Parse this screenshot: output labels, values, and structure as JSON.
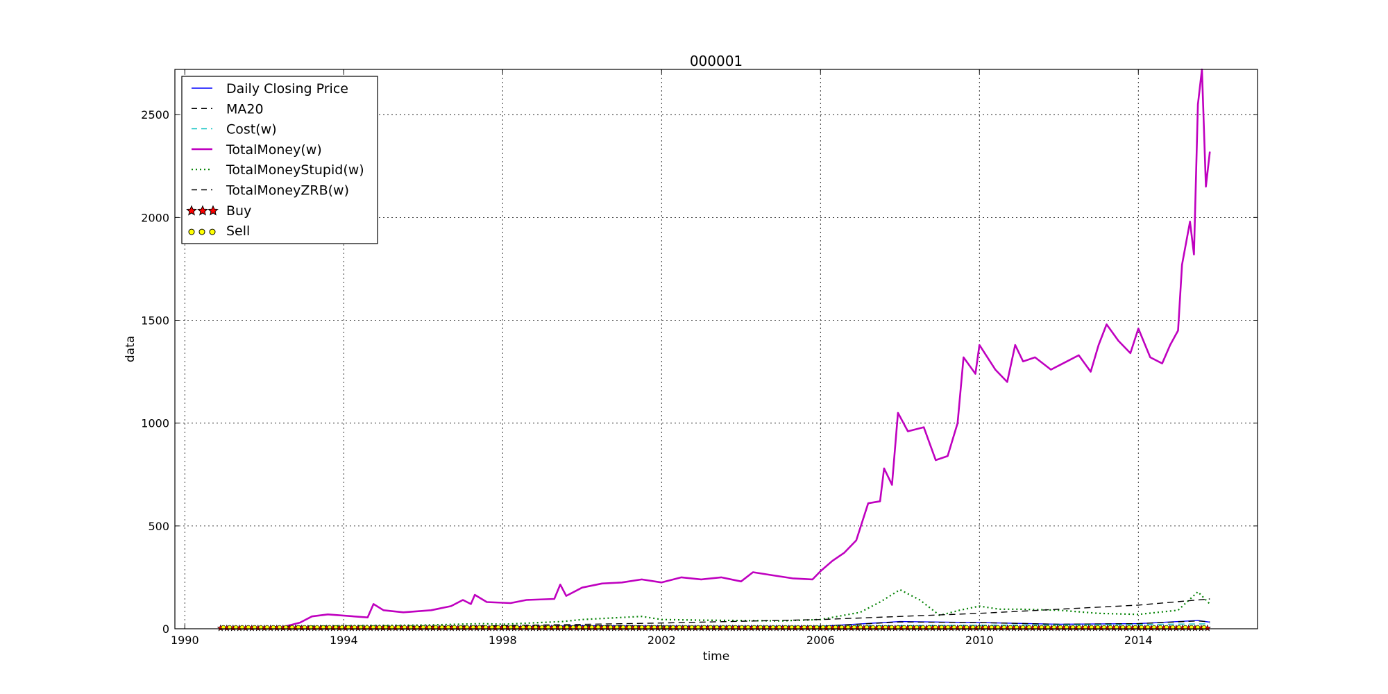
{
  "chart_data": {
    "type": "line",
    "title": "000001",
    "xlabel": "time",
    "ylabel": "data",
    "xlim": [
      1989.75,
      2017.0
    ],
    "ylim": [
      0,
      2720
    ],
    "xticks": [
      1990,
      1994,
      1998,
      2002,
      2006,
      2010,
      2014
    ],
    "yticks": [
      0,
      500,
      1000,
      1500,
      2000,
      2500
    ],
    "grid": true,
    "legend_position": "top-left",
    "series": [
      {
        "name": "Daily Closing Price",
        "color": "#0000ff",
        "style": "solid",
        "x": [
          1990.9,
          1992.0,
          1993.0,
          1994.5,
          1996.0,
          1998.0,
          2000.0,
          2002.0,
          2004.0,
          2006.0,
          2008.0,
          2010.0,
          2012.0,
          2014.0,
          2015.5,
          2015.8
        ],
        "y": [
          1,
          3,
          8,
          6,
          7,
          10,
          15,
          13,
          12,
          12,
          35,
          30,
          22,
          25,
          40,
          32
        ]
      },
      {
        "name": "MA20",
        "color": "#000000",
        "style": "dashed",
        "x": [
          1990.9,
          1992.0,
          1993.0,
          1994.5,
          1996.0,
          1998.0,
          2000.0,
          2002.0,
          2004.0,
          2006.0,
          2008.0,
          2010.0,
          2012.0,
          2014.0,
          2015.5,
          2015.8
        ],
        "y": [
          1,
          3,
          8,
          6,
          7,
          10,
          15,
          13,
          12,
          12,
          33,
          30,
          22,
          25,
          38,
          33
        ]
      },
      {
        "name": "Cost(w)",
        "color": "#00bfbf",
        "style": "dashed",
        "x": [
          1990.9,
          1992.0,
          1994.0,
          1996.0,
          1998.0,
          2000.0,
          2002.0,
          2004.0,
          2006.0,
          2008.0,
          2010.0,
          2012.0,
          2014.0,
          2015.8
        ],
        "y": [
          1,
          3,
          5,
          6,
          8,
          10,
          11,
          12,
          13,
          15,
          17,
          19,
          21,
          24
        ]
      },
      {
        "name": "TotalMoney(w)",
        "color": "#bf00bf",
        "style": "solid",
        "x": [
          1990.9,
          1992.4,
          1992.9,
          1993.2,
          1993.6,
          1994.6,
          1994.75,
          1995.0,
          1995.5,
          1996.2,
          1996.7,
          1997.0,
          1997.2,
          1997.3,
          1997.6,
          1998.2,
          1998.6,
          1999.3,
          1999.45,
          1999.6,
          2000.0,
          2000.5,
          2001.0,
          2001.5,
          2002.0,
          2002.5,
          2003.0,
          2003.5,
          2004.0,
          2004.3,
          2004.8,
          2005.3,
          2005.8,
          2006.0,
          2006.3,
          2006.6,
          2006.9,
          2007.2,
          2007.5,
          2007.6,
          2007.8,
          2007.95,
          2008.2,
          2008.6,
          2008.9,
          2009.2,
          2009.45,
          2009.6,
          2009.9,
          2010.0,
          2010.4,
          2010.7,
          2010.9,
          2011.1,
          2011.4,
          2011.8,
          2012.2,
          2012.5,
          2012.8,
          2013.0,
          2013.2,
          2013.5,
          2013.8,
          2014.0,
          2014.3,
          2014.6,
          2014.8,
          2015.0,
          2015.1,
          2015.3,
          2015.4,
          2015.5,
          2015.6,
          2015.7,
          2015.8
        ],
        "y": [
          0,
          5,
          30,
          60,
          70,
          55,
          120,
          90,
          80,
          90,
          110,
          140,
          120,
          165,
          130,
          125,
          140,
          145,
          215,
          160,
          200,
          220,
          225,
          240,
          225,
          250,
          240,
          250,
          230,
          275,
          260,
          245,
          240,
          280,
          330,
          370,
          430,
          610,
          620,
          780,
          700,
          1050,
          960,
          980,
          820,
          840,
          1000,
          1320,
          1240,
          1380,
          1260,
          1200,
          1380,
          1300,
          1320,
          1260,
          1300,
          1330,
          1250,
          1380,
          1480,
          1400,
          1340,
          1460,
          1320,
          1290,
          1380,
          1450,
          1770,
          1980,
          1820,
          2550,
          2720,
          2150,
          2320
        ]
      },
      {
        "name": "TotalMoneyStupid(w)",
        "color": "#008000",
        "style": "dotted",
        "x": [
          1990.9,
          1992.0,
          1993.0,
          1994.0,
          1996.0,
          1997.5,
          1998.0,
          1999.5,
          2000.0,
          2001.5,
          2002.0,
          2003.0,
          2004.0,
          2005.0,
          2006.0,
          2007.0,
          2007.5,
          2008.0,
          2008.5,
          2009.0,
          2009.5,
          2010.0,
          2010.5,
          2011.0,
          2012.0,
          2013.0,
          2014.0,
          2015.0,
          2015.5,
          2015.8
        ],
        "y": [
          5,
          8,
          12,
          15,
          18,
          25,
          22,
          35,
          45,
          60,
          45,
          42,
          40,
          38,
          45,
          80,
          130,
          190,
          140,
          65,
          90,
          110,
          95,
          95,
          90,
          75,
          70,
          90,
          180,
          120
        ]
      },
      {
        "name": "TotalMoneyZRB(w)",
        "color": "#000000",
        "style": "dashed",
        "x": [
          1990.9,
          1994.0,
          1998.0,
          2002.0,
          2006.0,
          2010.0,
          2014.0,
          2015.8
        ],
        "y": [
          2,
          8,
          15,
          28,
          45,
          75,
          115,
          145
        ]
      }
    ],
    "markers": [
      {
        "name": "Buy",
        "shape": "star",
        "color": "#ff0000"
      },
      {
        "name": "Sell",
        "shape": "circle",
        "color": "#ffff00"
      }
    ],
    "marker_span": [
      1990.9,
      2015.8
    ],
    "marker_y": 3
  }
}
